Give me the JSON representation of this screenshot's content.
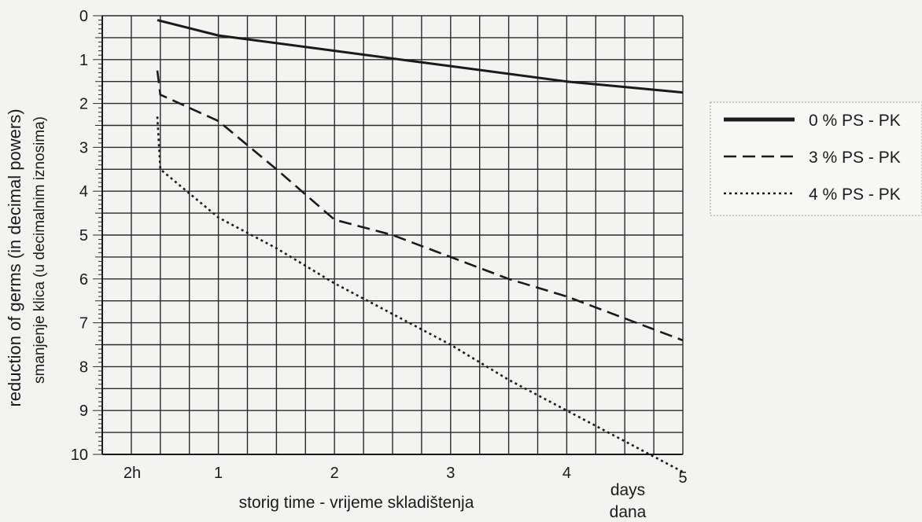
{
  "chart_data": {
    "type": "line",
    "ylabel": "reduction of germs (in decimal powers)",
    "ylabel_secondary": "smanjenje klica (u decimalnim iznosima)",
    "xlabel": "storig time - vrijeme skladištenja",
    "x_unit": "days",
    "x_unit_secondary": "dana",
    "x_ticks": [
      {
        "value": 0,
        "label": "2h"
      },
      {
        "value": 1,
        "label": "1"
      },
      {
        "value": 2,
        "label": "2"
      },
      {
        "value": 3,
        "label": "3"
      },
      {
        "value": 4,
        "label": "4"
      },
      {
        "value": 5,
        "label": "5"
      }
    ],
    "y_ticks": [
      0,
      1,
      2,
      3,
      4,
      5,
      6,
      7,
      8,
      9,
      10
    ],
    "xlim": [
      0,
      5
    ],
    "ylim": [
      0,
      10
    ],
    "y_inverted": true,
    "grid": true,
    "legend_position": "right",
    "series": [
      {
        "name": "0 % PS - PK",
        "style": "solid",
        "color": "#1a1a1a",
        "x": [
          0,
          1,
          2,
          3,
          4,
          5
        ],
        "y": [
          0.1,
          0.45,
          0.8,
          1.15,
          1.5,
          1.75
        ]
      },
      {
        "name": "3 % PS - PK",
        "style": "dashed",
        "color": "#1a1a1a",
        "x": [
          0,
          0.5,
          1,
          1.5,
          2,
          2.5,
          3,
          3.5,
          4,
          4.5,
          5
        ],
        "y": [
          1.25,
          1.8,
          2.4,
          3.5,
          4.65,
          5.0,
          5.5,
          6.0,
          6.4,
          6.9,
          7.4
        ]
      },
      {
        "name": "4 % PS - PK",
        "style": "dotted",
        "color": "#1a1a1a",
        "x": [
          0,
          0.5,
          1,
          1.5,
          2,
          2.5,
          3,
          3.5,
          4,
          4.5,
          5
        ],
        "y": [
          2.3,
          3.5,
          4.6,
          5.3,
          6.1,
          6.8,
          7.5,
          8.3,
          9.0,
          9.7,
          10.4
        ]
      }
    ]
  }
}
